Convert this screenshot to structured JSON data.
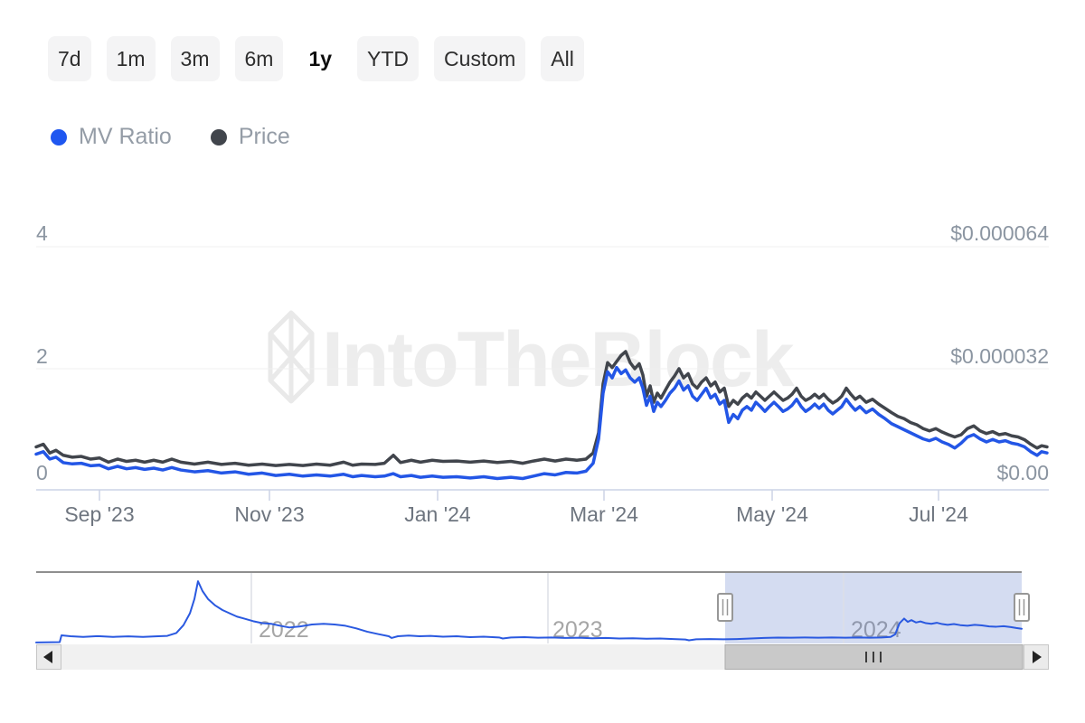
{
  "range_selector": {
    "buttons": [
      {
        "label": "7d",
        "selected": false
      },
      {
        "label": "1m",
        "selected": false
      },
      {
        "label": "3m",
        "selected": false
      },
      {
        "label": "6m",
        "selected": false
      },
      {
        "label": "1y",
        "selected": true
      },
      {
        "label": "YTD",
        "selected": false
      },
      {
        "label": "Custom",
        "selected": false
      },
      {
        "label": "All",
        "selected": false
      }
    ]
  },
  "legend": {
    "items": [
      {
        "label": "MV Ratio",
        "color": "#1f57f0"
      },
      {
        "label": "Price",
        "color": "#41454c"
      }
    ]
  },
  "watermark": {
    "text": "IntoTheBlock"
  },
  "colors": {
    "mv_ratio_blue": "#2356e6",
    "price_gray": "#41454c",
    "navigator_blue": "#2a59e0",
    "selection_fill": "rgba(77,110,195,0.24)",
    "gridline": "#f0f0f0",
    "axis_line": "#ccd3e6",
    "watermark_gray": "#ededed"
  },
  "chart_data": [
    {
      "id": "main",
      "type": "line",
      "x_window": [
        "2023-08-08",
        "2024-08-14"
      ],
      "x_ticks": [
        "Sep '23",
        "Nov '23",
        "Jan '24",
        "Mar '24",
        "May '24",
        "Jul '24"
      ],
      "left_axis": {
        "title": "MV Ratio",
        "ticks": [
          "4",
          "2",
          "0"
        ],
        "range": [
          0,
          4
        ]
      },
      "right_axis": {
        "title": "Price",
        "ticks": [
          "$0.000064",
          "$0.000032",
          "$0.00"
        ],
        "range_usd": [
          0,
          6.4e-05
        ]
      },
      "grid": true,
      "legend_position": "top-left",
      "t": [
        0,
        0.0071,
        0.0134,
        0.0196,
        0.0268,
        0.0357,
        0.0446,
        0.0536,
        0.0625,
        0.0714,
        0.0804,
        0.0893,
        0.0982,
        0.1071,
        0.1161,
        0.125,
        0.1339,
        0.1429,
        0.1563,
        0.1696,
        0.183,
        0.1964,
        0.2098,
        0.2232,
        0.2366,
        0.25,
        0.2634,
        0.2768,
        0.2902,
        0.3036,
        0.3125,
        0.3214,
        0.3348,
        0.3438,
        0.3527,
        0.3598,
        0.3705,
        0.3795,
        0.3911,
        0.4018,
        0.4152,
        0.4286,
        0.442,
        0.4554,
        0.4688,
        0.4804,
        0.4911,
        0.5018,
        0.5125,
        0.5232,
        0.5339,
        0.5429,
        0.55,
        0.5554,
        0.5598,
        0.5643,
        0.5688,
        0.5732,
        0.5777,
        0.5821,
        0.5866,
        0.5911,
        0.5955,
        0.5991,
        0.6027,
        0.6063,
        0.6098,
        0.6134,
        0.617,
        0.6214,
        0.6259,
        0.6304,
        0.6348,
        0.6393,
        0.6438,
        0.6482,
        0.6527,
        0.6571,
        0.6616,
        0.6661,
        0.6705,
        0.675,
        0.6795,
        0.6839,
        0.6884,
        0.6929,
        0.6973,
        0.7018,
        0.7063,
        0.7107,
        0.7152,
        0.7196,
        0.7241,
        0.7286,
        0.733,
        0.7375,
        0.742,
        0.7464,
        0.7509,
        0.7554,
        0.7598,
        0.7643,
        0.7688,
        0.7732,
        0.7777,
        0.7821,
        0.7866,
        0.7911,
        0.7955,
        0.8,
        0.8045,
        0.8089,
        0.8134,
        0.8196,
        0.8259,
        0.8321,
        0.8384,
        0.8446,
        0.8509,
        0.8571,
        0.8634,
        0.8696,
        0.8759,
        0.8821,
        0.8884,
        0.8946,
        0.9009,
        0.9071,
        0.9134,
        0.9196,
        0.9259,
        0.9321,
        0.9384,
        0.9446,
        0.9509,
        0.9571,
        0.9634,
        0.9696,
        0.9759,
        0.9821,
        0.9884,
        0.9929,
        0.9982
      ],
      "series": [
        {
          "name": "MV Ratio",
          "axis": "left",
          "color": "#2356e6",
          "values": [
            0.6,
            0.64,
            0.52,
            0.55,
            0.46,
            0.44,
            0.45,
            0.41,
            0.42,
            0.36,
            0.4,
            0.36,
            0.38,
            0.35,
            0.37,
            0.34,
            0.38,
            0.34,
            0.31,
            0.33,
            0.29,
            0.31,
            0.27,
            0.29,
            0.25,
            0.27,
            0.24,
            0.26,
            0.24,
            0.27,
            0.23,
            0.25,
            0.23,
            0.24,
            0.28,
            0.23,
            0.25,
            0.22,
            0.24,
            0.22,
            0.23,
            0.21,
            0.23,
            0.2,
            0.22,
            0.2,
            0.24,
            0.28,
            0.26,
            0.3,
            0.29,
            0.32,
            0.45,
            0.85,
            1.6,
            1.95,
            1.85,
            2.02,
            1.92,
            1.98,
            1.85,
            1.78,
            1.85,
            1.68,
            1.4,
            1.55,
            1.3,
            1.45,
            1.38,
            1.48,
            1.6,
            1.68,
            1.8,
            1.65,
            1.72,
            1.55,
            1.48,
            1.58,
            1.68,
            1.52,
            1.58,
            1.42,
            1.48,
            1.12,
            1.25,
            1.18,
            1.32,
            1.38,
            1.32,
            1.45,
            1.38,
            1.3,
            1.38,
            1.45,
            1.38,
            1.3,
            1.34,
            1.4,
            1.5,
            1.38,
            1.3,
            1.35,
            1.42,
            1.35,
            1.42,
            1.32,
            1.26,
            1.32,
            1.38,
            1.5,
            1.4,
            1.32,
            1.38,
            1.28,
            1.34,
            1.25,
            1.18,
            1.1,
            1.05,
            1.0,
            0.95,
            0.9,
            0.85,
            0.82,
            0.86,
            0.8,
            0.76,
            0.7,
            0.78,
            0.88,
            0.92,
            0.85,
            0.8,
            0.84,
            0.8,
            0.82,
            0.78,
            0.76,
            0.72,
            0.64,
            0.58,
            0.64,
            0.62
          ]
        },
        {
          "name": "Price",
          "axis": "right",
          "color": "#41454c",
          "unit": "USD x 1e-6",
          "values_microusd": [
            11.5,
            12.2,
            9.9,
            10.6,
            9.3,
            8.8,
            9.0,
            8.3,
            8.6,
            7.5,
            8.3,
            7.7,
            8.0,
            7.5,
            8.0,
            7.5,
            8.3,
            7.5,
            7.0,
            7.5,
            6.9,
            7.2,
            6.7,
            7.0,
            6.6,
            6.9,
            6.6,
            7.0,
            6.7,
            7.5,
            6.7,
            7.0,
            6.9,
            7.2,
            9.3,
            7.4,
            8.0,
            7.5,
            8.0,
            7.7,
            7.8,
            7.5,
            7.8,
            7.4,
            7.7,
            7.2,
            7.8,
            8.3,
            7.8,
            8.3,
            8.0,
            8.3,
            9.9,
            15.2,
            28.0,
            33.6,
            32.3,
            33.9,
            35.5,
            36.5,
            33.6,
            32.0,
            33.3,
            30.4,
            24.8,
            27.5,
            23.2,
            25.6,
            24.3,
            26.4,
            28.5,
            30.1,
            32.0,
            29.6,
            30.7,
            28.0,
            26.9,
            28.5,
            29.6,
            27.5,
            28.5,
            25.9,
            26.9,
            22.1,
            23.7,
            22.7,
            24.3,
            25.3,
            24.3,
            25.9,
            24.8,
            23.7,
            24.8,
            25.9,
            24.8,
            23.7,
            24.3,
            25.3,
            26.9,
            24.8,
            23.7,
            24.3,
            25.3,
            24.3,
            25.3,
            24.0,
            23.0,
            23.7,
            24.8,
            26.9,
            25.3,
            24.0,
            24.8,
            23.2,
            24.0,
            22.7,
            21.6,
            20.5,
            19.5,
            18.9,
            17.9,
            17.3,
            16.3,
            15.7,
            16.3,
            15.4,
            14.7,
            14.1,
            14.7,
            16.3,
            17.0,
            15.7,
            15.0,
            15.5,
            14.7,
            15.0,
            14.4,
            14.1,
            13.4,
            12.2,
            11.2,
            11.8,
            11.5
          ]
        }
      ]
    },
    {
      "id": "navigator",
      "type": "line",
      "x_window": [
        "2021-10",
        "2024-08"
      ],
      "x_ticks": [
        "2022",
        "2023",
        "2024"
      ],
      "selected_range": [
        "2023-08-08",
        "2024-08-14"
      ],
      "color": "#2a59e0",
      "t": [
        0,
        0.0239,
        0.0257,
        0.0349,
        0.0477,
        0.0624,
        0.078,
        0.0936,
        0.1083,
        0.1211,
        0.133,
        0.1422,
        0.1495,
        0.156,
        0.1606,
        0.1642,
        0.1688,
        0.1743,
        0.1817,
        0.189,
        0.1963,
        0.2037,
        0.211,
        0.2202,
        0.2294,
        0.2385,
        0.2477,
        0.2569,
        0.2679,
        0.2798,
        0.2917,
        0.3028,
        0.3138,
        0.3248,
        0.3358,
        0.3468,
        0.3578,
        0.3606,
        0.367,
        0.378,
        0.389,
        0.4,
        0.4128,
        0.4266,
        0.4404,
        0.4541,
        0.4697,
        0.4734,
        0.4817,
        0.4954,
        0.5092,
        0.5229,
        0.5367,
        0.5505,
        0.5642,
        0.578,
        0.5917,
        0.6055,
        0.6193,
        0.633,
        0.6468,
        0.6587,
        0.6624,
        0.6697,
        0.6835,
        0.6972,
        0.711,
        0.7248,
        0.7385,
        0.7523,
        0.766,
        0.7798,
        0.7936,
        0.8073,
        0.8211,
        0.8349,
        0.8459,
        0.8578,
        0.867,
        0.8716,
        0.8761,
        0.8807,
        0.8844,
        0.8881,
        0.8927,
        0.8972,
        0.9028,
        0.9083,
        0.9138,
        0.9193,
        0.9248,
        0.9312,
        0.9376,
        0.945,
        0.9523,
        0.9596,
        0.967,
        0.9743,
        0.9817,
        0.989,
        0.9945,
        1
      ],
      "values": [
        0.08,
        0.1,
        0.62,
        0.55,
        0.5,
        0.56,
        0.5,
        0.54,
        0.5,
        0.54,
        0.58,
        0.8,
        1.4,
        2.3,
        3.4,
        4.75,
        4.0,
        3.4,
        2.9,
        2.55,
        2.3,
        2.05,
        1.9,
        1.7,
        1.55,
        1.5,
        1.35,
        1.22,
        1.3,
        1.45,
        1.5,
        1.45,
        1.35,
        1.15,
        0.9,
        0.72,
        0.55,
        0.42,
        0.55,
        0.6,
        0.55,
        0.58,
        0.52,
        0.55,
        0.48,
        0.52,
        0.46,
        0.38,
        0.46,
        0.48,
        0.44,
        0.46,
        0.42,
        0.44,
        0.4,
        0.42,
        0.38,
        0.4,
        0.36,
        0.38,
        0.34,
        0.3,
        0.24,
        0.32,
        0.34,
        0.32,
        0.34,
        0.38,
        0.42,
        0.45,
        0.44,
        0.46,
        0.44,
        0.46,
        0.44,
        0.46,
        0.44,
        0.46,
        0.5,
        0.7,
        1.55,
        1.9,
        1.65,
        1.78,
        1.6,
        1.68,
        1.55,
        1.5,
        1.58,
        1.48,
        1.42,
        1.48,
        1.4,
        1.35,
        1.42,
        1.38,
        1.3,
        1.28,
        1.32,
        1.25,
        1.18,
        1.12
      ]
    }
  ]
}
